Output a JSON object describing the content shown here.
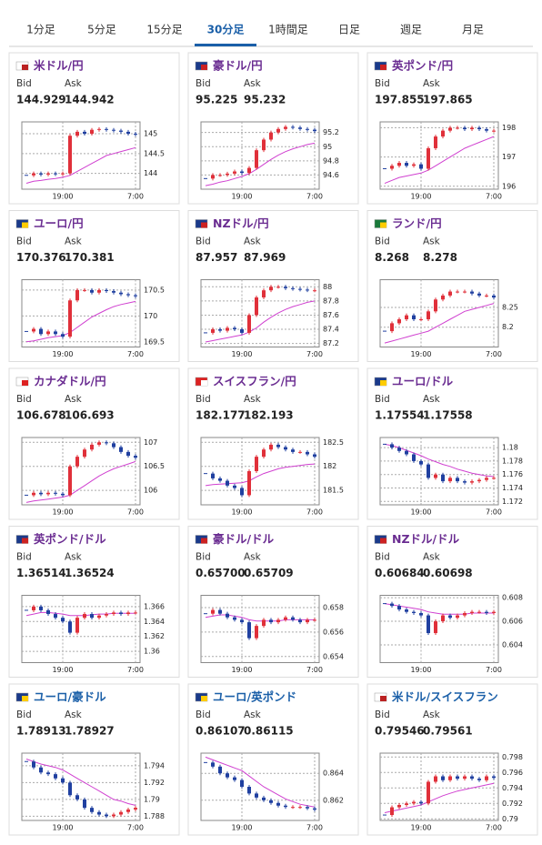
{
  "tabs": [
    "1分足",
    "5分足",
    "15分足",
    "30分足",
    "1時間足",
    "日足",
    "週足",
    "月足"
  ],
  "active_tab": 3,
  "labels": {
    "bid": "Bid",
    "ask": "Ask"
  },
  "categories": [
    null,
    null,
    null,
    null,
    null,
    "19:00",
    null,
    null,
    null,
    null,
    null,
    null,
    null,
    null,
    null,
    "7:00"
  ],
  "pairs": [
    {
      "name": "米ドル/円",
      "bid": "144.929",
      "ask": "144.942",
      "chart": {
        "ylim": [
          143.6,
          145.3
        ],
        "yticks": [
          144,
          144.5,
          145
        ],
        "close": [
          143.95,
          144.0,
          143.97,
          144.0,
          143.98,
          144.0,
          144.95,
          145.05,
          145.0,
          145.1,
          145.12,
          145.1,
          145.08,
          145.05,
          145.0,
          144.98
        ],
        "ma": [
          143.75,
          143.8,
          143.82,
          143.85,
          143.87,
          143.9,
          143.95,
          144.05,
          144.15,
          144.25,
          144.35,
          144.45,
          144.5,
          144.55,
          144.6,
          144.65
        ]
      }
    },
    {
      "name": "豪ドル/円",
      "bid": "95.225",
      "ask": "95.232",
      "chart": {
        "ylim": [
          94.4,
          95.35
        ],
        "yticks": [
          94.6,
          94.8,
          95,
          95.2
        ],
        "close": [
          94.55,
          94.6,
          94.6,
          94.62,
          94.65,
          94.63,
          94.7,
          94.95,
          95.1,
          95.2,
          95.25,
          95.28,
          95.27,
          95.25,
          95.24,
          95.22
        ],
        "ma": [
          94.45,
          94.47,
          94.5,
          94.52,
          94.55,
          94.58,
          94.62,
          94.68,
          94.75,
          94.82,
          94.88,
          94.93,
          94.97,
          95.0,
          95.03,
          95.05
        ]
      }
    },
    {
      "name": "英ポンド/円",
      "bid": "197.855",
      "ask": "197.865",
      "chart": {
        "ylim": [
          195.9,
          198.2
        ],
        "yticks": [
          196,
          197,
          198
        ],
        "close": [
          196.6,
          196.7,
          196.8,
          196.7,
          196.75,
          196.6,
          197.3,
          197.7,
          197.9,
          198.0,
          198.0,
          197.95,
          198.0,
          197.95,
          197.9,
          197.9
        ],
        "ma": [
          196.1,
          196.2,
          196.3,
          196.35,
          196.4,
          196.45,
          196.55,
          196.7,
          196.85,
          197.0,
          197.15,
          197.3,
          197.4,
          197.5,
          197.6,
          197.7
        ]
      }
    },
    {
      "name": "ユーロ/円",
      "bid": "170.376",
      "ask": "170.381",
      "chart": {
        "ylim": [
          169.4,
          170.7
        ],
        "yticks": [
          169.5,
          170,
          170.5
        ],
        "close": [
          169.7,
          169.75,
          169.65,
          169.7,
          169.65,
          169.6,
          170.3,
          170.5,
          170.5,
          170.45,
          170.5,
          170.48,
          170.45,
          170.42,
          170.4,
          170.38
        ],
        "ma": [
          169.5,
          169.52,
          169.55,
          169.58,
          169.6,
          169.62,
          169.68,
          169.78,
          169.88,
          169.98,
          170.05,
          170.12,
          170.18,
          170.22,
          170.25,
          170.28
        ]
      }
    },
    {
      "name": "NZドル/円",
      "bid": "87.957",
      "ask": "87.969",
      "chart": {
        "ylim": [
          87.15,
          88.1
        ],
        "yticks": [
          87.2,
          87.4,
          87.6,
          87.8,
          88
        ],
        "close": [
          87.35,
          87.4,
          87.38,
          87.42,
          87.4,
          87.35,
          87.6,
          87.85,
          87.95,
          88.0,
          88.0,
          87.98,
          87.97,
          87.96,
          87.95,
          87.95
        ],
        "ma": [
          87.22,
          87.24,
          87.26,
          87.28,
          87.3,
          87.32,
          87.36,
          87.42,
          87.5,
          87.57,
          87.63,
          87.68,
          87.72,
          87.75,
          87.78,
          87.8
        ]
      }
    },
    {
      "name": "ランド/円",
      "bid": "8.268",
      "ask": "8.278",
      "chart": {
        "ylim": [
          8.15,
          8.32
        ],
        "yticks": [
          8.2,
          8.25
        ],
        "close": [
          8.19,
          8.21,
          8.22,
          8.23,
          8.22,
          8.22,
          8.24,
          8.27,
          8.28,
          8.29,
          8.29,
          8.29,
          8.285,
          8.28,
          8.28,
          8.275
        ],
        "ma": [
          8.16,
          8.165,
          8.17,
          8.175,
          8.18,
          8.185,
          8.19,
          8.2,
          8.21,
          8.22,
          8.23,
          8.24,
          8.245,
          8.25,
          8.255,
          8.26
        ]
      }
    },
    {
      "name": "カナダドル/円",
      "bid": "106.678",
      "ask": "106.693",
      "chart": {
        "ylim": [
          105.7,
          107.1
        ],
        "yticks": [
          106,
          106.5,
          107
        ],
        "close": [
          105.9,
          105.95,
          105.92,
          105.95,
          105.93,
          105.9,
          106.5,
          106.7,
          106.85,
          106.95,
          107.0,
          106.98,
          106.9,
          106.8,
          106.72,
          106.68
        ],
        "ma": [
          105.75,
          105.78,
          105.8,
          105.82,
          105.84,
          105.86,
          105.9,
          106.0,
          106.1,
          106.2,
          106.3,
          106.38,
          106.45,
          106.5,
          106.55,
          106.6
        ]
      }
    },
    {
      "name": "スイスフラン/円",
      "bid": "182.177",
      "ask": "182.193",
      "chart": {
        "ylim": [
          181.2,
          182.6
        ],
        "yticks": [
          181.5,
          182,
          182.5
        ],
        "close": [
          181.85,
          181.75,
          181.7,
          181.6,
          181.55,
          181.4,
          181.9,
          182.2,
          182.35,
          182.45,
          182.4,
          182.35,
          182.3,
          182.3,
          182.25,
          182.2
        ],
        "ma": [
          181.6,
          181.62,
          181.63,
          181.64,
          181.65,
          181.66,
          181.7,
          181.78,
          181.85,
          181.9,
          181.95,
          181.98,
          182.0,
          182.02,
          182.04,
          182.05
        ]
      }
    },
    {
      "name": "ユーロ/ドル",
      "bid": "1.17554",
      "ask": "1.17558",
      "chart": {
        "ylim": [
          1.1715,
          1.1815
        ],
        "yticks": [
          1.172,
          1.174,
          1.176,
          1.178,
          1.18
        ],
        "close": [
          1.1805,
          1.18,
          1.1795,
          1.179,
          1.178,
          1.1775,
          1.1755,
          1.176,
          1.175,
          1.1755,
          1.175,
          1.1748,
          1.175,
          1.1752,
          1.1755,
          1.1755
        ],
        "ma": [
          1.1805,
          1.1803,
          1.18,
          1.1796,
          1.1792,
          1.1788,
          1.1783,
          1.1779,
          1.1775,
          1.1772,
          1.1768,
          1.1765,
          1.1762,
          1.176,
          1.1758,
          1.1757
        ]
      }
    },
    {
      "name": "英ポンド/ドル",
      "bid": "1.36514",
      "ask": "1.36524",
      "chart": {
        "ylim": [
          1.3585,
          1.3675
        ],
        "yticks": [
          1.36,
          1.362,
          1.364,
          1.366
        ],
        "close": [
          1.3655,
          1.366,
          1.3655,
          1.365,
          1.3645,
          1.364,
          1.3625,
          1.3645,
          1.365,
          1.3645,
          1.3648,
          1.365,
          1.3652,
          1.365,
          1.3652,
          1.3652
        ],
        "ma": [
          1.3648,
          1.365,
          1.3652,
          1.3652,
          1.3651,
          1.365,
          1.3648,
          1.3648,
          1.3648,
          1.3649,
          1.365,
          1.365,
          1.3651,
          1.3651,
          1.3651,
          1.3651
        ]
      }
    },
    {
      "name": "豪ドル/ドル",
      "bid": "0.65700",
      "ask": "0.65709",
      "chart": {
        "ylim": [
          0.6535,
          0.659
        ],
        "yticks": [
          0.654,
          0.656,
          0.658
        ],
        "close": [
          0.6575,
          0.6578,
          0.6575,
          0.6572,
          0.657,
          0.6568,
          0.6555,
          0.6565,
          0.657,
          0.6568,
          0.657,
          0.6572,
          0.657,
          0.6568,
          0.657,
          0.657
        ],
        "ma": [
          0.6572,
          0.6573,
          0.6574,
          0.6574,
          0.6573,
          0.6572,
          0.657,
          0.6569,
          0.6569,
          0.6569,
          0.6569,
          0.657,
          0.657,
          0.657,
          0.657,
          0.657
        ]
      }
    },
    {
      "name": "NZドル/ドル",
      "bid": "0.60684",
      "ask": "0.60698",
      "chart": {
        "ylim": [
          0.6025,
          0.6082
        ],
        "yticks": [
          0.604,
          0.606,
          0.608
        ],
        "close": [
          0.6075,
          0.6073,
          0.607,
          0.6068,
          0.6067,
          0.6065,
          0.605,
          0.606,
          0.6065,
          0.6063,
          0.6065,
          0.6067,
          0.6068,
          0.6068,
          0.6067,
          0.6068
        ],
        "ma": [
          0.6075,
          0.6074,
          0.6073,
          0.6072,
          0.6071,
          0.607,
          0.6068,
          0.6067,
          0.6066,
          0.6066,
          0.6066,
          0.6066,
          0.6067,
          0.6067,
          0.6067,
          0.6067
        ]
      }
    },
    {
      "name": "ユーロ/豪ドル",
      "bid": "1.78913",
      "ask": "1.78927",
      "chart": {
        "ylim": [
          1.7875,
          1.7955
        ],
        "yticks": [
          1.788,
          1.79,
          1.792,
          1.794
        ],
        "close": [
          1.7945,
          1.7938,
          1.7932,
          1.793,
          1.7925,
          1.792,
          1.7905,
          1.79,
          1.789,
          1.7885,
          1.7882,
          1.788,
          1.7882,
          1.7885,
          1.7888,
          1.789
        ],
        "ma": [
          1.7948,
          1.7945,
          1.7942,
          1.794,
          1.7938,
          1.7935,
          1.793,
          1.7925,
          1.792,
          1.7915,
          1.791,
          1.7905,
          1.79,
          1.7898,
          1.7895,
          1.7893
        ]
      }
    },
    {
      "name": "ユーロ/英ポンド",
      "bid": "0.86107",
      "ask": "0.86115",
      "chart": {
        "ylim": [
          0.8605,
          0.8655
        ],
        "yticks": [
          0.862,
          0.864
        ],
        "close": [
          0.8648,
          0.8645,
          0.864,
          0.8637,
          0.8635,
          0.863,
          0.8625,
          0.8622,
          0.862,
          0.8618,
          0.8616,
          0.8615,
          0.8615,
          0.8615,
          0.8614,
          0.8613
        ],
        "ma": [
          0.8652,
          0.865,
          0.8648,
          0.8646,
          0.8644,
          0.8642,
          0.8638,
          0.8634,
          0.863,
          0.8627,
          0.8624,
          0.8621,
          0.8619,
          0.8617,
          0.8616,
          0.8615
        ]
      }
    },
    {
      "name": "米ドル/スイスフラン",
      "bid": "0.79546",
      "ask": "0.79561",
      "chart": {
        "ylim": [
          0.7898,
          0.7985
        ],
        "yticks": [
          0.79,
          0.792,
          0.794,
          0.796,
          0.798
        ],
        "close": [
          0.7905,
          0.7915,
          0.7918,
          0.792,
          0.7922,
          0.792,
          0.7948,
          0.7955,
          0.795,
          0.7955,
          0.7952,
          0.7955,
          0.7952,
          0.795,
          0.7955,
          0.7953
        ],
        "ma": [
          0.7908,
          0.791,
          0.7912,
          0.7914,
          0.7916,
          0.7918,
          0.7922,
          0.7926,
          0.793,
          0.7933,
          0.7936,
          0.7938,
          0.794,
          0.7942,
          0.7944,
          0.7946
        ]
      }
    }
  ]
}
